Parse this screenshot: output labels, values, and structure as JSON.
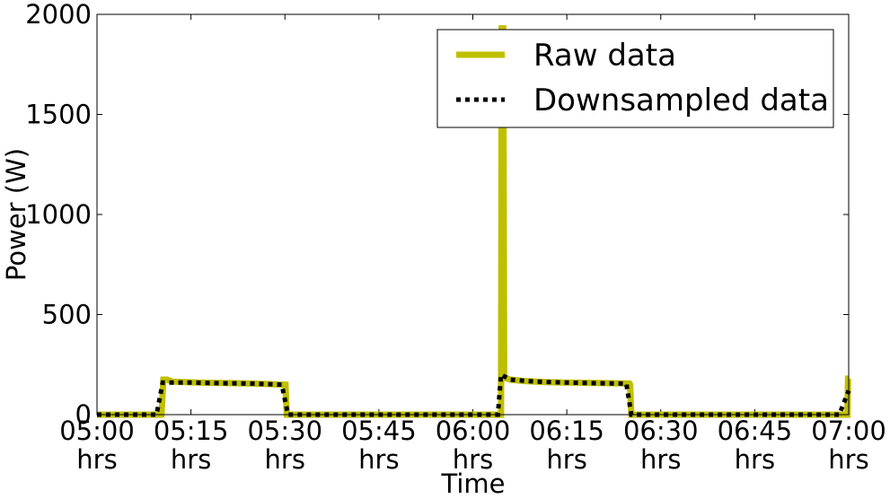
{
  "chart_data": {
    "type": "line",
    "title": "",
    "xlabel": "Time",
    "ylabel": "Power (W)",
    "xlim": [
      0,
      120
    ],
    "ylim": [
      0,
      2000
    ],
    "x_unit": "minutes after 05:00",
    "x_ticks": [
      {
        "value": 0,
        "label": "05:00",
        "sublabel": "hrs"
      },
      {
        "value": 15,
        "label": "05:15",
        "sublabel": "hrs"
      },
      {
        "value": 30,
        "label": "05:30",
        "sublabel": "hrs"
      },
      {
        "value": 45,
        "label": "05:45",
        "sublabel": "hrs"
      },
      {
        "value": 60,
        "label": "06:00",
        "sublabel": "hrs"
      },
      {
        "value": 75,
        "label": "06:15",
        "sublabel": "hrs"
      },
      {
        "value": 90,
        "label": "06:30",
        "sublabel": "hrs"
      },
      {
        "value": 105,
        "label": "06:45",
        "sublabel": "hrs"
      },
      {
        "value": 120,
        "label": "07:00",
        "sublabel": "hrs"
      }
    ],
    "y_ticks": [
      {
        "value": 0,
        "label": "0"
      },
      {
        "value": 500,
        "label": "500"
      },
      {
        "value": 1000,
        "label": "1000"
      },
      {
        "value": 1500,
        "label": "1500"
      },
      {
        "value": 2000,
        "label": "2000"
      }
    ],
    "legend_position": "top-right",
    "series": [
      {
        "name": "Raw data",
        "color": "#bfbf00",
        "style": "solid",
        "points": [
          [
            0,
            0
          ],
          [
            10.3,
            0
          ],
          [
            10.6,
            175
          ],
          [
            11.2,
            175
          ],
          [
            12,
            165
          ],
          [
            16,
            160
          ],
          [
            20,
            158
          ],
          [
            25,
            155
          ],
          [
            30.1,
            150
          ],
          [
            30.3,
            0
          ],
          [
            64.5,
            0
          ],
          [
            64.6,
            1930
          ],
          [
            64.85,
            1930
          ],
          [
            65.0,
            185
          ],
          [
            66,
            175
          ],
          [
            68,
            168
          ],
          [
            72,
            162
          ],
          [
            80,
            158
          ],
          [
            85,
            155
          ],
          [
            85.1,
            150
          ],
          [
            85.3,
            0
          ],
          [
            119.8,
            0
          ],
          [
            119.9,
            180
          ],
          [
            120,
            180
          ]
        ]
      },
      {
        "name": "Downsampled data",
        "color": "#000000",
        "style": "dotted",
        "points": [
          [
            0,
            0
          ],
          [
            9.5,
            0
          ],
          [
            10.5,
            160
          ],
          [
            15,
            160
          ],
          [
            20,
            157
          ],
          [
            25,
            155
          ],
          [
            29.5,
            150
          ],
          [
            30.5,
            0
          ],
          [
            64,
            0
          ],
          [
            64.5,
            200
          ],
          [
            66,
            175
          ],
          [
            70,
            165
          ],
          [
            75,
            160
          ],
          [
            80,
            157
          ],
          [
            84.5,
            155
          ],
          [
            85.3,
            0
          ],
          [
            118.5,
            0
          ],
          [
            120,
            120
          ]
        ]
      }
    ]
  }
}
